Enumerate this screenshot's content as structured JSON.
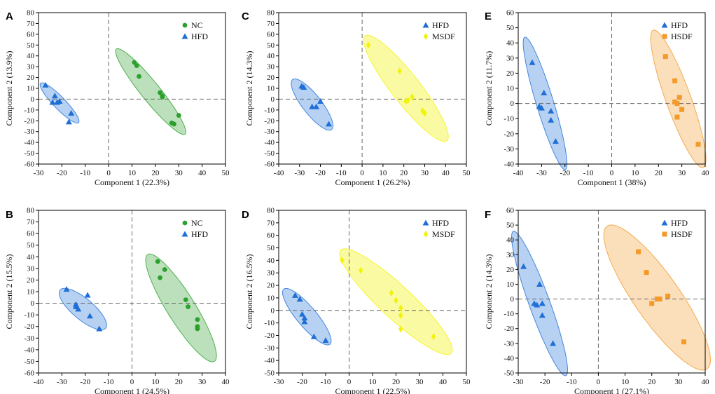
{
  "colors": {
    "NC": "#2ca02c",
    "HFD": "#1f6fd6",
    "MSDF": "#f2f20a",
    "HSDF": "#f39a2b"
  },
  "chart_data": [
    {
      "panel": "A",
      "type": "scatter",
      "xlabel": "Component 1 (22.3%)",
      "ylabel": "Component 2 (13.9%)",
      "xlim": [
        -30,
        50
      ],
      "ylim": [
        -60,
        80
      ],
      "xticks": [
        -30,
        -20,
        -10,
        0,
        10,
        20,
        30,
        40,
        50
      ],
      "yticks": [
        -60,
        -50,
        -40,
        -30,
        -20,
        -10,
        0,
        10,
        20,
        30,
        40,
        50,
        60,
        70,
        80
      ],
      "legend_position": "top-right",
      "series": [
        {
          "name": "NC",
          "marker": "circle",
          "x": [
            11,
            12,
            13,
            22,
            23,
            23,
            27,
            28,
            30
          ],
          "y": [
            34,
            31,
            21,
            6,
            3,
            2,
            -22,
            -23,
            -15
          ],
          "ellipse": {
            "cx": 18,
            "cy": 7,
            "rx": 32,
            "ry": 5.5,
            "angle_deg": -51
          }
        },
        {
          "name": "HFD",
          "marker": "triangle",
          "x": [
            -27,
            -23,
            -24,
            -22,
            -21,
            -16,
            -17
          ],
          "y": [
            13,
            3,
            -3,
            -3,
            -2,
            -13,
            -21
          ],
          "ellipse": {
            "cx": -21,
            "cy": -3.5,
            "rx": 16,
            "ry": 3.5,
            "angle_deg": -46
          }
        }
      ]
    },
    {
      "panel": "B",
      "type": "scatter",
      "xlabel": "Component 1 (24.5%)",
      "ylabel": "Component 2 (15.5%)",
      "xlim": [
        -40,
        40
      ],
      "ylim": [
        -60,
        80
      ],
      "xticks": [
        -40,
        -30,
        -20,
        -10,
        0,
        10,
        20,
        30,
        40
      ],
      "yticks": [
        -60,
        -50,
        -40,
        -30,
        -20,
        -10,
        0,
        10,
        20,
        30,
        40,
        50,
        60,
        70,
        80
      ],
      "legend_position": "top-right",
      "series": [
        {
          "name": "NC",
          "marker": "circle",
          "x": [
            11,
            12,
            14,
            23,
            24,
            28,
            28,
            28
          ],
          "y": [
            36,
            22,
            29,
            3,
            -3,
            -14,
            -20,
            -22
          ],
          "ellipse": {
            "cx": 21,
            "cy": -4,
            "rx": 36,
            "ry": 8,
            "angle_deg": -58
          }
        },
        {
          "name": "HFD",
          "marker": "triangle",
          "x": [
            -28,
            -24,
            -24,
            -23,
            -19,
            -18,
            -14
          ],
          "y": [
            12,
            -1,
            -3,
            -5,
            7,
            -11,
            -22
          ],
          "ellipse": {
            "cx": -21,
            "cy": -5,
            "rx": 17,
            "ry": 6,
            "angle_deg": -40
          }
        }
      ]
    },
    {
      "panel": "C",
      "type": "scatter",
      "xlabel": "Component 1 (26.2%)",
      "ylabel": "Component 2 (14.3%)",
      "xlim": [
        -40,
        50
      ],
      "ylim": [
        -60,
        80
      ],
      "xticks": [
        -40,
        -30,
        -20,
        -10,
        0,
        10,
        20,
        30,
        40,
        50
      ],
      "yticks": [
        -60,
        -50,
        -40,
        -30,
        -20,
        -10,
        0,
        10,
        20,
        30,
        40,
        50,
        60,
        70,
        80
      ],
      "legend_position": "top-right",
      "series": [
        {
          "name": "HFD",
          "marker": "triangle",
          "x": [
            -29,
            -28,
            -24,
            -22,
            -20,
            -16
          ],
          "y": [
            12,
            11,
            -7,
            -7,
            -2,
            -23
          ],
          "ellipse": {
            "cx": -24,
            "cy": -5,
            "rx": 20,
            "ry": 6,
            "angle_deg": -52
          }
        },
        {
          "name": "MSDF",
          "marker": "diamond",
          "x": [
            3,
            18,
            21,
            22,
            24,
            29,
            30
          ],
          "y": [
            50,
            26,
            -2,
            -1,
            2,
            -11,
            -13
          ],
          "ellipse": {
            "cx": 21,
            "cy": 10,
            "rx": 42,
            "ry": 9,
            "angle_deg": -52
          }
        }
      ]
    },
    {
      "panel": "D",
      "type": "scatter",
      "xlabel": "Component 1 (22.5%)",
      "ylabel": "Component 2 (16.5%)",
      "xlim": [
        -30,
        50
      ],
      "ylim": [
        -50,
        80
      ],
      "xticks": [
        -30,
        -20,
        -10,
        0,
        10,
        20,
        30,
        40,
        50
      ],
      "yticks": [
        -50,
        -40,
        -30,
        -20,
        -10,
        0,
        10,
        20,
        30,
        40,
        50,
        60,
        70,
        80
      ],
      "legend_position": "top-right",
      "series": [
        {
          "name": "HFD",
          "marker": "triangle",
          "x": [
            -23,
            -21,
            -20,
            -19,
            -19,
            -15,
            -10
          ],
          "y": [
            12,
            9,
            -3,
            -6,
            -9,
            -21,
            -24
          ],
          "ellipse": {
            "cx": -18,
            "cy": -5,
            "rx": 20,
            "ry": 5.5,
            "angle_deg": -50
          }
        },
        {
          "name": "MSDF",
          "marker": "diamond",
          "x": [
            -3,
            5,
            18,
            20,
            22,
            22,
            22,
            36
          ],
          "y": [
            40,
            32,
            14,
            8,
            2,
            -4,
            -15,
            -21
          ],
          "ellipse": {
            "cx": 20,
            "cy": 7,
            "rx": 42,
            "ry": 9,
            "angle_deg": -43
          }
        }
      ]
    },
    {
      "panel": "E",
      "type": "scatter",
      "xlabel": "Component 1 (38%)",
      "ylabel": "Component 2 (11.7%)",
      "xlim": [
        -40,
        40
      ],
      "ylim": [
        -40,
        60
      ],
      "xticks": [
        -40,
        -30,
        -20,
        -10,
        0,
        10,
        20,
        30,
        40
      ],
      "yticks": [
        -40,
        -30,
        -20,
        -10,
        0,
        10,
        20,
        30,
        40,
        50,
        60
      ],
      "legend_position": "top-right",
      "series": [
        {
          "name": "HFD",
          "marker": "triangle",
          "x": [
            -34,
            -31,
            -29,
            -30,
            -26,
            -26,
            -24
          ],
          "y": [
            27,
            -2,
            7,
            -3,
            -5,
            -11,
            -25
          ],
          "ellipse": {
            "cx": -28.5,
            "cy": 0,
            "rx": 36,
            "ry": 4.5,
            "angle_deg": -73
          }
        },
        {
          "name": "HSDF",
          "marker": "square",
          "x": [
            23,
            27,
            27,
            28,
            29,
            30,
            28,
            37
          ],
          "y": [
            31,
            15,
            1,
            0,
            4,
            -4,
            -9,
            -27
          ],
          "ellipse": {
            "cx": 28.5,
            "cy": 3,
            "rx": 38,
            "ry": 6.5,
            "angle_deg": -70
          }
        }
      ]
    },
    {
      "panel": "F",
      "type": "scatter",
      "xlabel": "Component 1 (27.1%)",
      "ylabel": "Component 2 (14.3%)",
      "xlim": [
        -30,
        40
      ],
      "ylim": [
        -50,
        60
      ],
      "xticks": [
        -30,
        -20,
        -10,
        0,
        10,
        20,
        30,
        40
      ],
      "yticks": [
        -50,
        -40,
        -30,
        -20,
        -10,
        0,
        10,
        20,
        30,
        40,
        50,
        60
      ],
      "legend_position": "top-right",
      "series": [
        {
          "name": "HFD",
          "marker": "triangle",
          "x": [
            -28,
            -22,
            -24,
            -23,
            -21,
            -21,
            -17
          ],
          "y": [
            22,
            10,
            -3,
            -4,
            -3,
            -11,
            -30
          ],
          "ellipse": {
            "cx": -22,
            "cy": -3,
            "rx": 37,
            "ry": 5,
            "angle_deg": -70
          }
        },
        {
          "name": "HSDF",
          "marker": "square",
          "x": [
            15,
            18,
            20,
            22,
            23,
            26,
            32
          ],
          "y": [
            32,
            18,
            -3,
            0,
            0,
            2,
            -29
          ],
          "ellipse": {
            "cx": 22,
            "cy": 1,
            "rx": 42,
            "ry": 11,
            "angle_deg": -55
          }
        }
      ]
    }
  ]
}
